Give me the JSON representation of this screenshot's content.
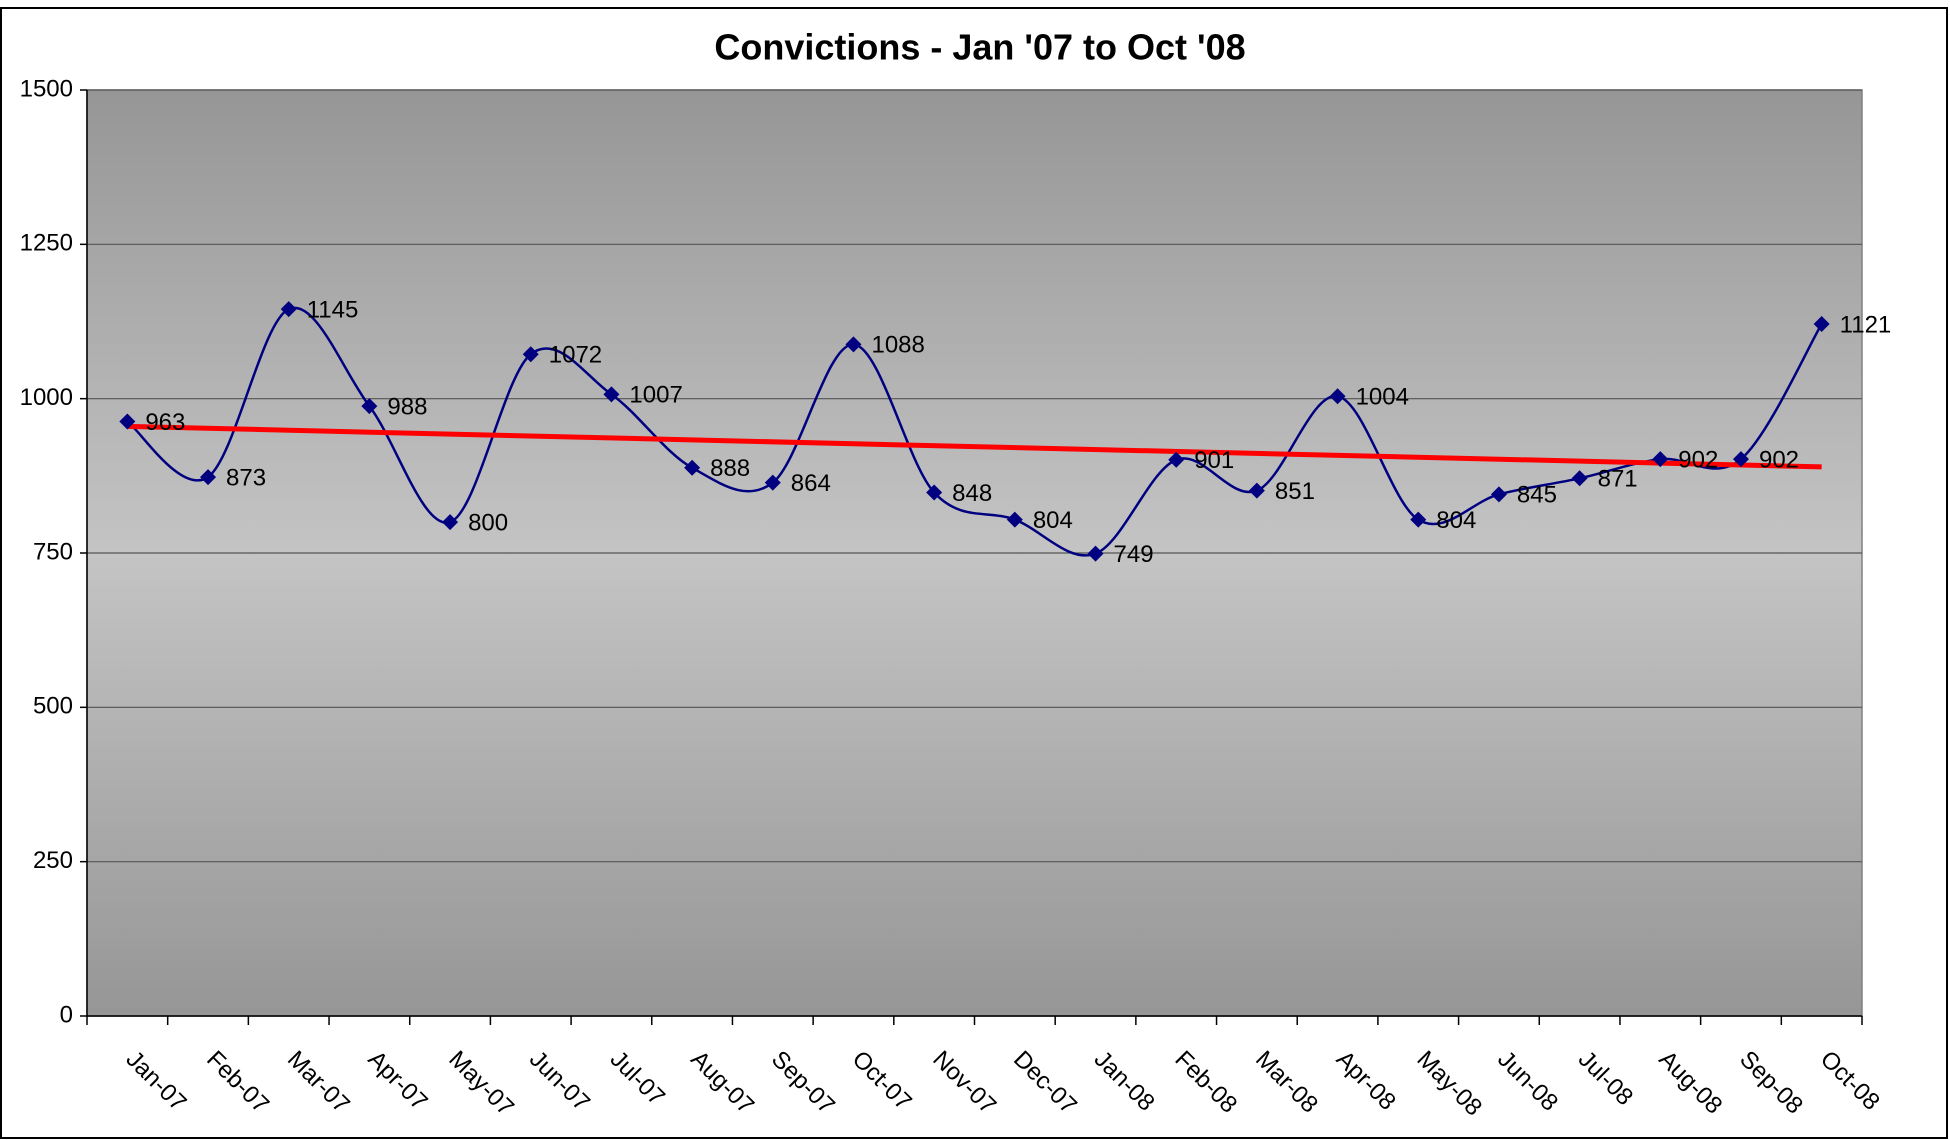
{
  "chart_data": {
    "type": "line",
    "title": "Convictions - Jan '07 to Oct '08",
    "categories": [
      "Jan-07",
      "Feb-07",
      "Mar-07",
      "Apr-07",
      "May-07",
      "Jun-07",
      "Jul-07",
      "Aug-07",
      "Sep-07",
      "Oct-07",
      "Nov-07",
      "Dec-07",
      "Jan-08",
      "Feb-08",
      "Mar-08",
      "Apr-08",
      "May-08",
      "Jun-08",
      "Jul-08",
      "Aug-08",
      "Sep-08",
      "Oct-08"
    ],
    "values": [
      963,
      873,
      1145,
      988,
      800,
      1072,
      1007,
      888,
      864,
      1088,
      848,
      804,
      749,
      901,
      851,
      1004,
      804,
      845,
      871,
      902,
      902,
      1121
    ],
    "color": "#000080",
    "trendline_color": "#ff0000",
    "trendline": true,
    "smooth": true,
    "ylim": [
      0,
      1500
    ],
    "yticks": [
      0,
      250,
      500,
      750,
      1000,
      1250,
      1500
    ],
    "grid": true
  }
}
